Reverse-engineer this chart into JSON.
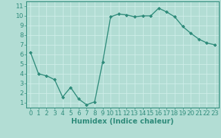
{
  "x": [
    0,
    1,
    2,
    3,
    4,
    5,
    6,
    7,
    8,
    9,
    10,
    11,
    12,
    13,
    14,
    15,
    16,
    17,
    18,
    19,
    20,
    21,
    22,
    23
  ],
  "y": [
    6.2,
    4.0,
    3.8,
    3.4,
    1.6,
    2.6,
    1.4,
    0.8,
    1.1,
    5.2,
    9.9,
    10.2,
    10.1,
    9.9,
    10.0,
    10.0,
    10.8,
    10.4,
    9.9,
    8.9,
    8.2,
    7.6,
    7.2,
    7.0
  ],
  "line_color": "#2e8b7a",
  "marker": "D",
  "marker_size": 2.2,
  "background_color": "#b2ddd4",
  "grid_color": "#d0eeea",
  "xlabel": "Humidex (Indice chaleur)",
  "xlabel_fontsize": 7.5,
  "tick_fontsize": 6.5,
  "xlim": [
    -0.5,
    23.5
  ],
  "ylim": [
    0.5,
    11.5
  ],
  "yticks": [
    1,
    2,
    3,
    4,
    5,
    6,
    7,
    8,
    9,
    10,
    11
  ],
  "xticks": [
    0,
    1,
    2,
    3,
    4,
    5,
    6,
    7,
    8,
    9,
    10,
    11,
    12,
    13,
    14,
    15,
    16,
    17,
    18,
    19,
    20,
    21,
    22,
    23
  ],
  "line_width": 1.0,
  "spine_color": "#2e8b7a"
}
